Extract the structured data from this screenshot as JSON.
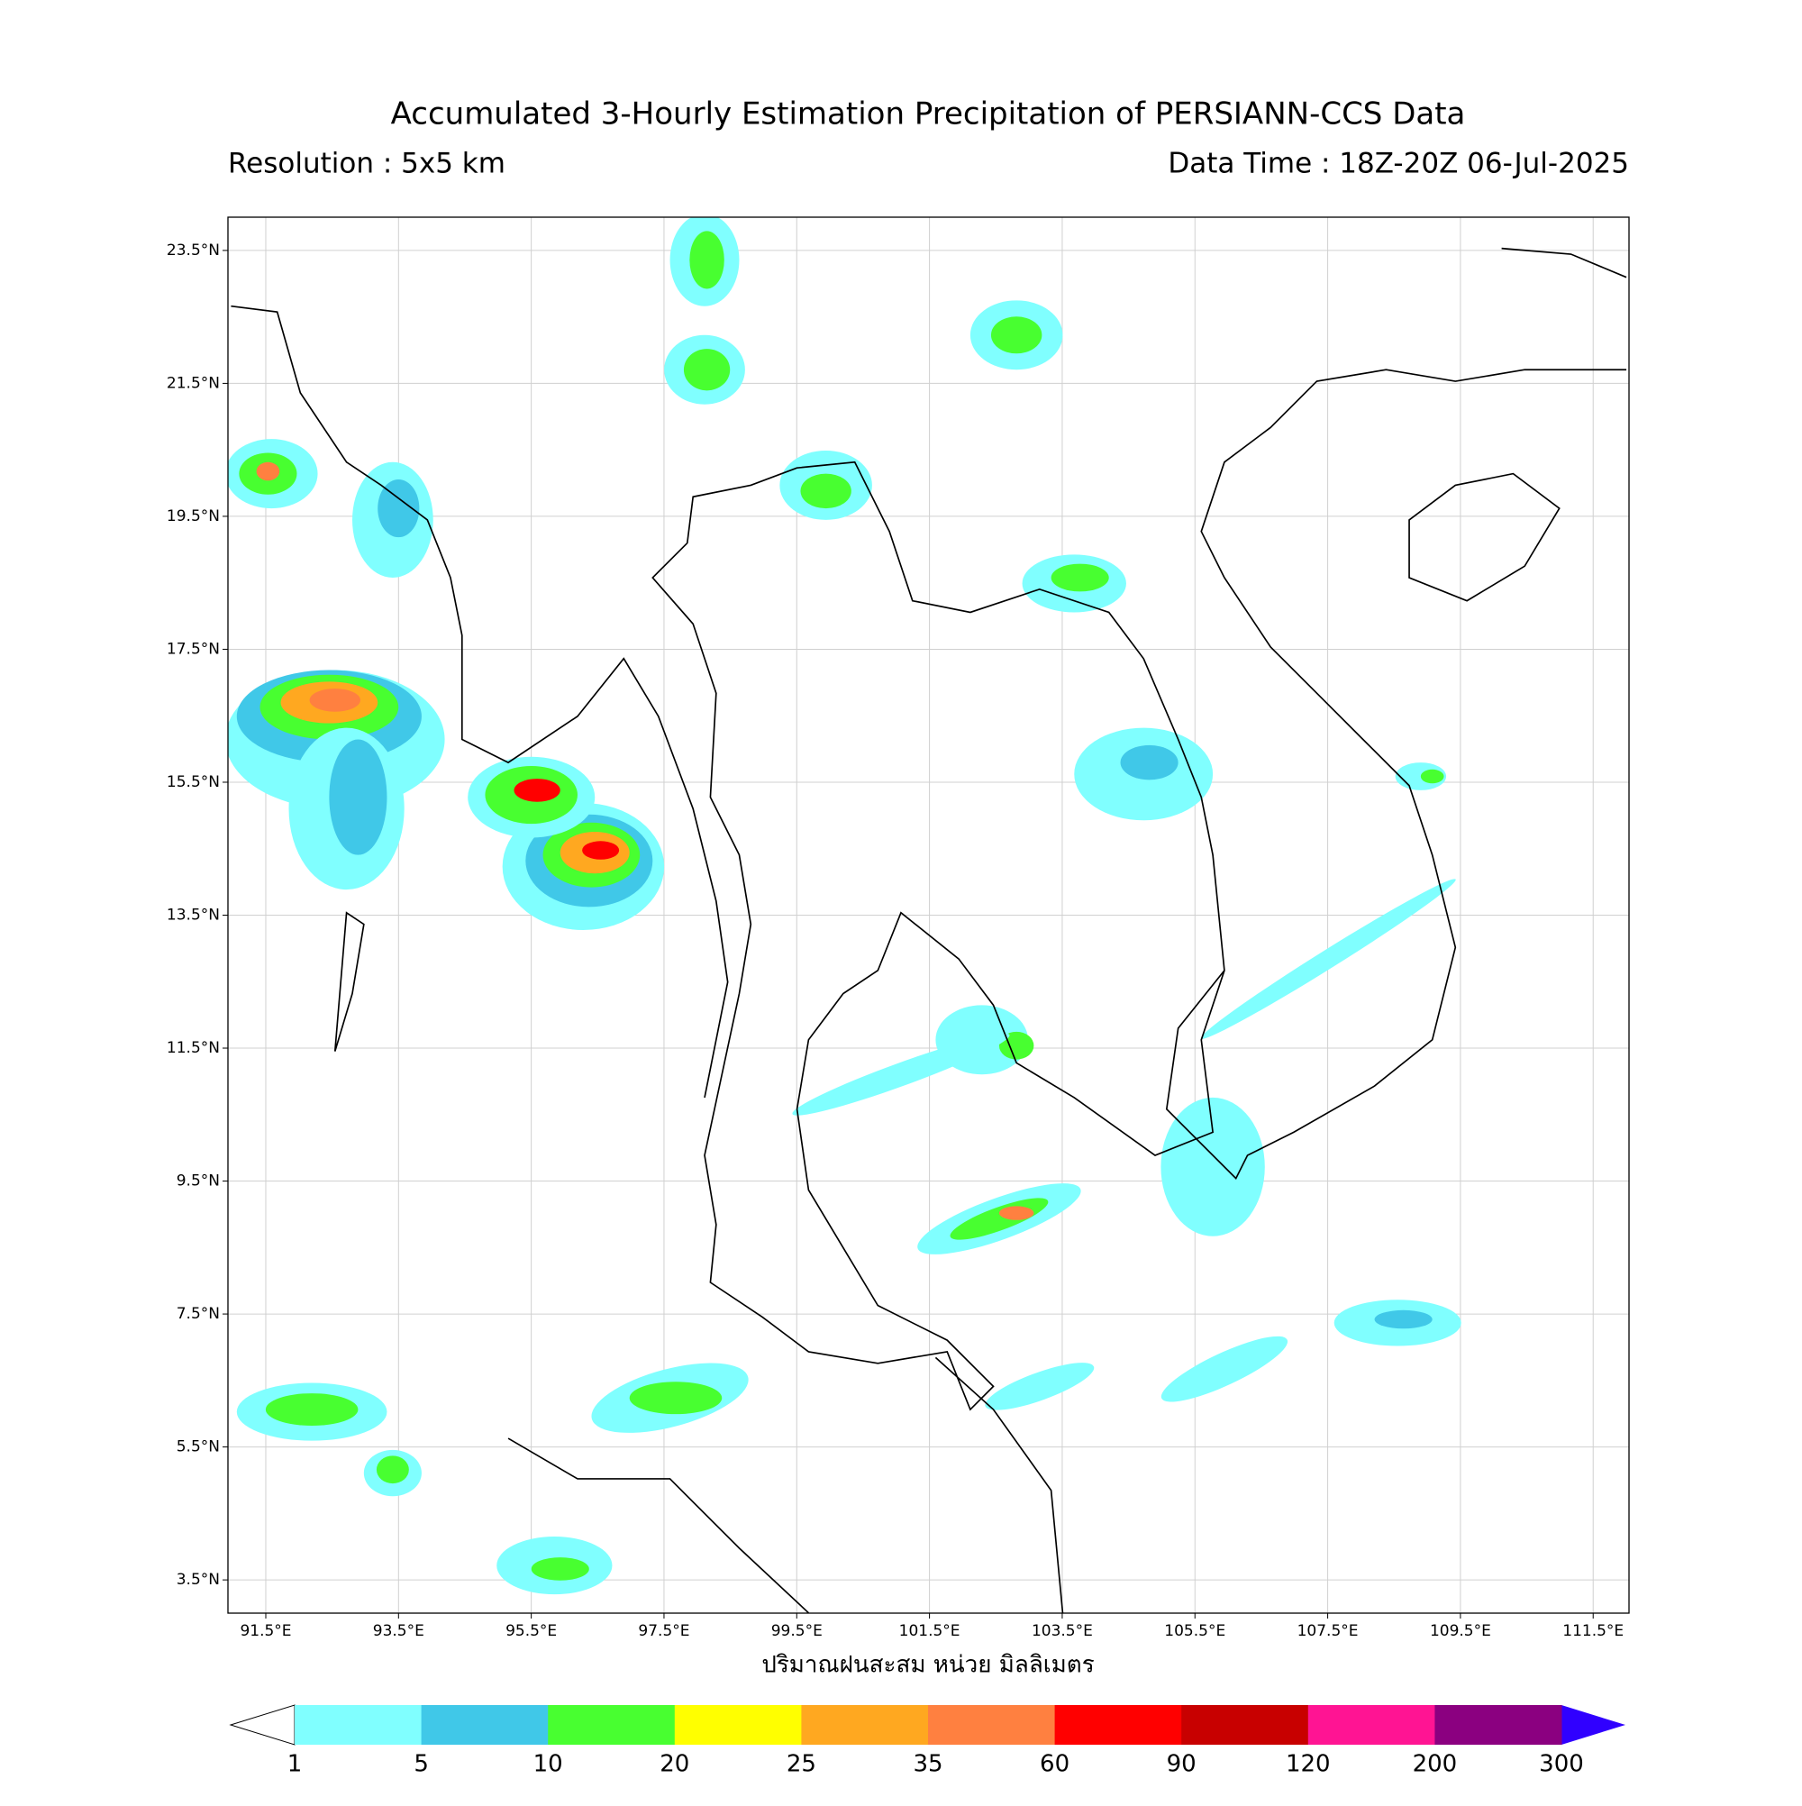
{
  "header": {
    "title": "Accumulated 3-Hourly Estimation Precipitation of PERSIANN-CCS Data",
    "resolution": "Resolution : 5x5 km",
    "data_time": "Data Time : 18Z-20Z 06-Jul-2025"
  },
  "map": {
    "lonlim": [
      90.93,
      112.04
    ],
    "latlim": [
      3.0,
      24.0
    ],
    "grid": true,
    "xticks": [
      {
        "value": 91.5,
        "label": "91.5°E"
      },
      {
        "value": 93.5,
        "label": "93.5°E"
      },
      {
        "value": 95.5,
        "label": "95.5°E"
      },
      {
        "value": 97.5,
        "label": "97.5°E"
      },
      {
        "value": 99.5,
        "label": "99.5°E"
      },
      {
        "value": 101.5,
        "label": "101.5°E"
      },
      {
        "value": 103.5,
        "label": "103.5°E"
      },
      {
        "value": 105.5,
        "label": "105.5°E"
      },
      {
        "value": 107.5,
        "label": "107.5°E"
      },
      {
        "value": 109.5,
        "label": "109.5°E"
      },
      {
        "value": 111.5,
        "label": "111.5°E"
      }
    ],
    "yticks": [
      {
        "value": 23.5,
        "label": "23.5°N"
      },
      {
        "value": 21.5,
        "label": "21.5°N"
      },
      {
        "value": 19.5,
        "label": "19.5°N"
      },
      {
        "value": 17.5,
        "label": "17.5°N"
      },
      {
        "value": 15.5,
        "label": "15.5°N"
      },
      {
        "value": 13.5,
        "label": "13.5°N"
      },
      {
        "value": 11.5,
        "label": "11.5°N"
      },
      {
        "value": 9.5,
        "label": "9.5°N"
      },
      {
        "value": 7.5,
        "label": "7.5°N"
      },
      {
        "value": 5.5,
        "label": "5.5°N"
      },
      {
        "value": 3.5,
        "label": "3.5°N"
      }
    ],
    "xlabel": "ปริมาณฝนสะสม หน่วย มิลลิเมตร"
  },
  "colorbar": {
    "levels": [
      1,
      5,
      10,
      20,
      25,
      35,
      60,
      90,
      120,
      200,
      300
    ],
    "colors": [
      "#80ffff",
      "#40c8e8",
      "#48ff30",
      "#ffff00",
      "#ffa820",
      "#ff8040",
      "#ff0000",
      "#c80000",
      "#ff1493",
      "#8b0080"
    ],
    "under_color": "#ffffff",
    "over_color": "#3000ff"
  }
}
